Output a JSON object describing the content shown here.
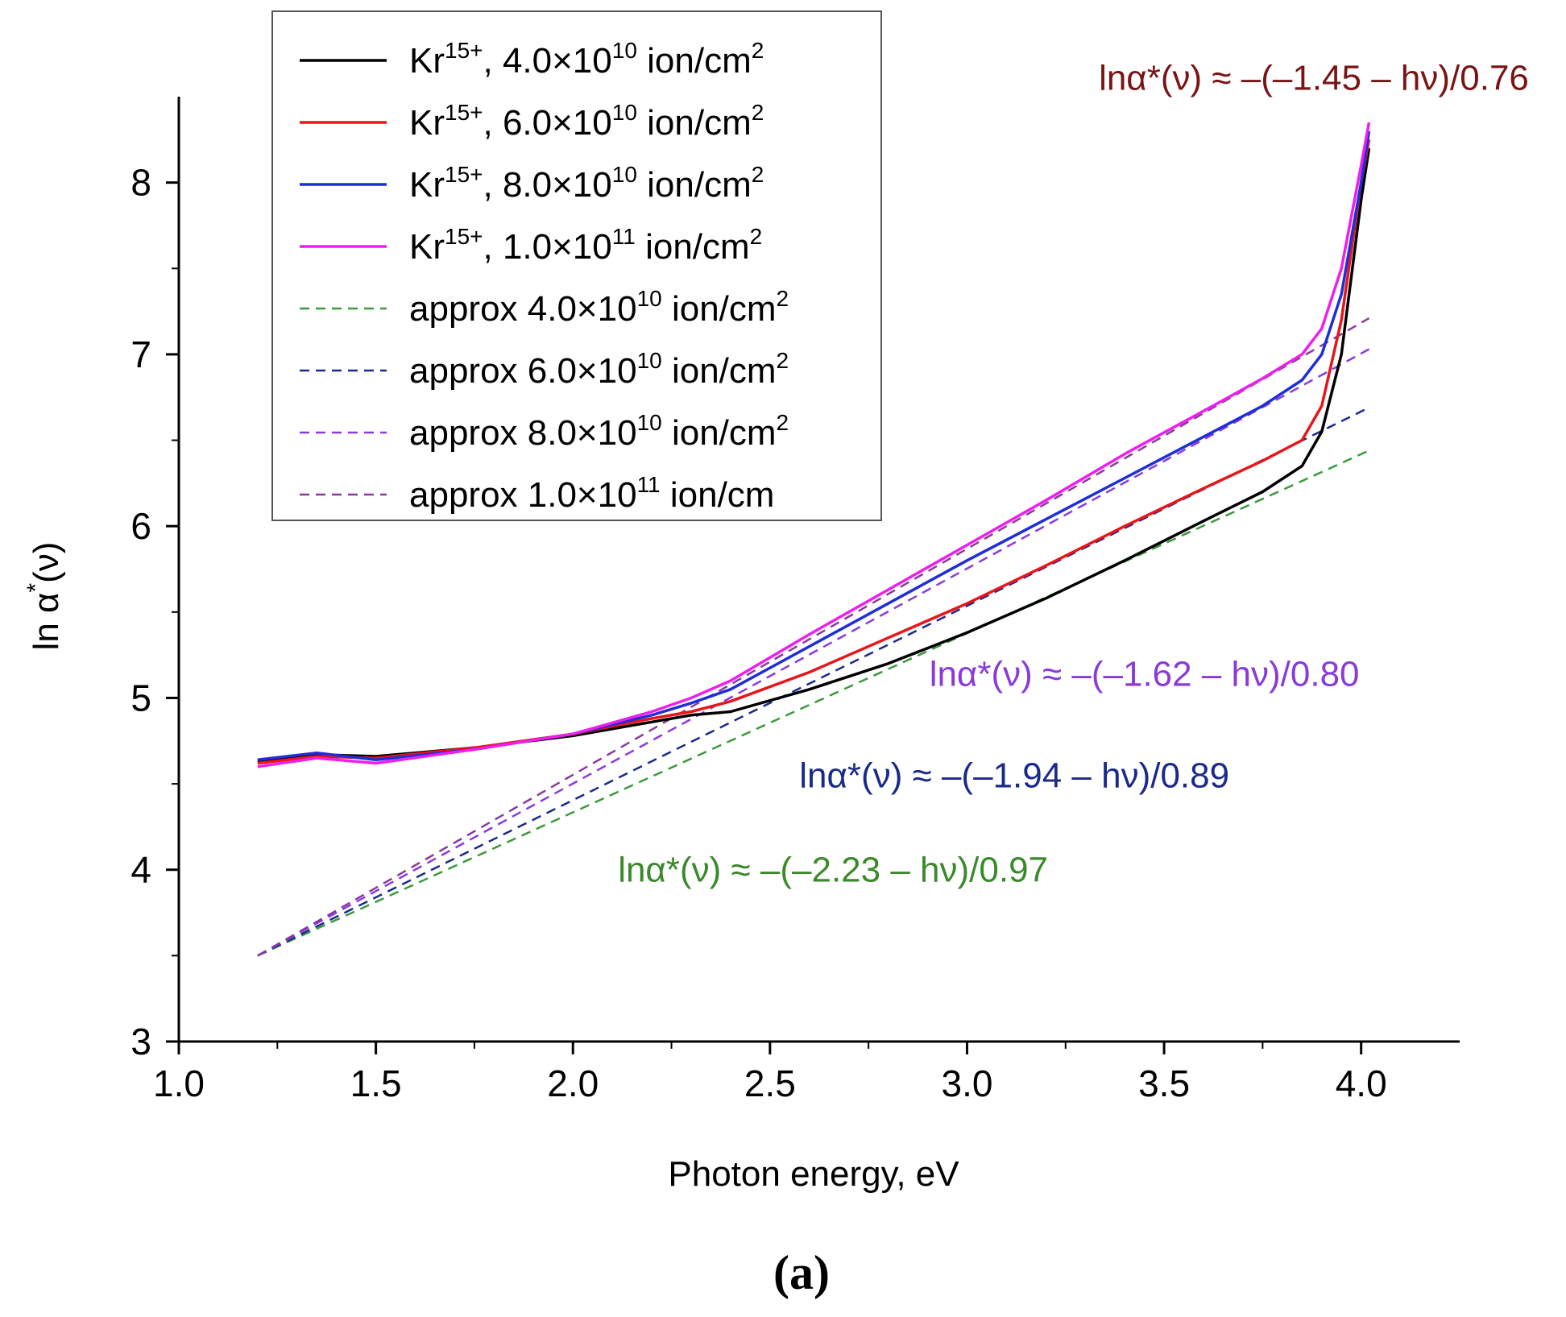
{
  "chart_data": {
    "type": "line",
    "xlabel": "Photon energy, eV",
    "ylabel_main": "ln α",
    "ylabel_sup": "*",
    "ylabel_tail": "(ν)",
    "panel_label": "(a)",
    "xlim": [
      1.0,
      4.25
    ],
    "ylim": [
      3,
      8.5
    ],
    "xticks": [
      "1.0",
      "1.5",
      "2.0",
      "2.5",
      "3.0",
      "3.5",
      "4.0"
    ],
    "yticks": [
      "3",
      "4",
      "5",
      "6",
      "7",
      "8"
    ],
    "grid": false,
    "legend_position": "top-left",
    "series": [
      {
        "name": "Kr15+, 4.0×1010 ion/cm2",
        "color": "#000000",
        "dash": false,
        "legend": {
          "pre": "Kr",
          "sup1": "15+",
          "mid": ", 4.0×10",
          "sup2": "10",
          "unit": " ion/cm",
          "sup3": "2"
        },
        "x": [
          1.2,
          1.35,
          1.5,
          1.75,
          2.0,
          2.2,
          2.3,
          2.4,
          2.6,
          2.8,
          3.0,
          3.2,
          3.4,
          3.6,
          3.75,
          3.85,
          3.9,
          3.95,
          4.0,
          4.02
        ],
        "y": [
          4.63,
          4.67,
          4.66,
          4.71,
          4.78,
          4.86,
          4.9,
          4.92,
          5.05,
          5.2,
          5.38,
          5.58,
          5.8,
          6.03,
          6.2,
          6.35,
          6.55,
          7.0,
          7.9,
          8.2
        ]
      },
      {
        "name": "Kr15+, 6.0×1010 ion/cm2",
        "color": "#e8151a",
        "dash": false,
        "legend": {
          "pre": "Kr",
          "sup1": "15+",
          "mid": ", 6.0×10",
          "sup2": "10",
          "unit": " ion/cm",
          "sup3": "2"
        },
        "x": [
          1.2,
          1.35,
          1.5,
          1.75,
          2.0,
          2.2,
          2.3,
          2.4,
          2.6,
          2.8,
          3.0,
          3.2,
          3.4,
          3.6,
          3.75,
          3.85,
          3.9,
          3.95,
          4.0,
          4.02
        ],
        "y": [
          4.62,
          4.66,
          4.65,
          4.71,
          4.79,
          4.88,
          4.92,
          4.98,
          5.15,
          5.35,
          5.55,
          5.77,
          6.0,
          6.22,
          6.38,
          6.5,
          6.7,
          7.2,
          8.0,
          8.25
        ]
      },
      {
        "name": "Kr15+, 8.0×1010 ion/cm2",
        "color": "#1f2ed6",
        "dash": false,
        "legend": {
          "pre": "Kr",
          "sup1": "15+",
          "mid": ", 8.0×10",
          "sup2": "10",
          "unit": " ion/cm",
          "sup3": "2"
        },
        "x": [
          1.2,
          1.35,
          1.5,
          1.75,
          2.0,
          2.2,
          2.3,
          2.4,
          2.6,
          2.8,
          3.0,
          3.2,
          3.4,
          3.6,
          3.75,
          3.85,
          3.9,
          3.95,
          4.0,
          4.02
        ],
        "y": [
          4.64,
          4.68,
          4.64,
          4.7,
          4.79,
          4.9,
          4.97,
          5.05,
          5.3,
          5.55,
          5.8,
          6.04,
          6.28,
          6.52,
          6.7,
          6.85,
          7.0,
          7.35,
          8.0,
          8.3
        ]
      },
      {
        "name": "Kr15+, 1.0×1011 ion/cm2",
        "color": "#ee1fee",
        "dash": false,
        "legend": {
          "pre": "Kr",
          "sup1": "15+",
          "mid": ", 1.0×10",
          "sup2": "11",
          "unit": " ion/cm",
          "sup3": "2"
        },
        "x": [
          1.2,
          1.35,
          1.5,
          1.75,
          2.0,
          2.2,
          2.3,
          2.4,
          2.6,
          2.8,
          3.0,
          3.2,
          3.4,
          3.6,
          3.75,
          3.85,
          3.9,
          3.95,
          4.0,
          4.02
        ],
        "y": [
          4.6,
          4.65,
          4.62,
          4.7,
          4.79,
          4.92,
          5.0,
          5.1,
          5.37,
          5.63,
          5.89,
          6.15,
          6.42,
          6.67,
          6.86,
          7.0,
          7.15,
          7.5,
          8.1,
          8.35
        ]
      },
      {
        "name": "approx 4.0×1010 ion/cm2",
        "color": "#3a9b3a",
        "dash": true,
        "legend": {
          "pre": "approx 4.0×10",
          "sup1": "10",
          "mid": " ion/cm",
          "sup2": "2",
          "unit": "",
          "sup3": ""
        },
        "x": [
          1.2,
          4.02
        ],
        "y": [
          3.5,
          6.44
        ]
      },
      {
        "name": "approx 6.0×1010 ion/cm2",
        "color": "#1a2a8a",
        "dash": true,
        "legend": {
          "pre": "approx 6.0×10",
          "sup1": "10",
          "mid": " ion/cm",
          "sup2": "2",
          "unit": "",
          "sup3": ""
        },
        "x": [
          1.2,
          4.02
        ],
        "y": [
          3.5,
          6.69
        ]
      },
      {
        "name": "approx 8.0×1010 ion/cm2",
        "color": "#8a3ae0",
        "dash": true,
        "legend": {
          "pre": "approx 8.0×10",
          "sup1": "10",
          "mid": " ion/cm",
          "sup2": "2",
          "unit": "",
          "sup3": ""
        },
        "x": [
          1.2,
          4.02
        ],
        "y": [
          3.5,
          7.03
        ]
      },
      {
        "name": "approx 1.0×1011 ion/cm",
        "color": "#8a3a9a",
        "dash": true,
        "legend": {
          "pre": "approx 1.0×10",
          "sup1": "11",
          "mid": " ion/cm",
          "sup2": "",
          "unit": "",
          "sup3": ""
        },
        "x": [
          1.2,
          4.02
        ],
        "y": [
          3.5,
          7.21
        ]
      }
    ],
    "annotations": [
      {
        "text": "lnα*(ν) ≈ –(–1.45 – hν)/0.76",
        "color": "#7a1414",
        "x": 3.88,
        "y": 8.54
      },
      {
        "text": "lnα*(ν) ≈ –(–1.62 – hν)/0.80",
        "color": "#8a3ad8",
        "x": 3.45,
        "y": 5.07
      },
      {
        "text": "lnα*(ν) ≈ –(–1.94 – hν)/0.89",
        "color": "#1a2a8a",
        "x": 3.12,
        "y": 4.48
      },
      {
        "text": "lnα*(ν) ≈ –(–2.23 – hν)/0.97",
        "color": "#3a8a2a",
        "x": 2.66,
        "y": 3.93
      }
    ]
  }
}
